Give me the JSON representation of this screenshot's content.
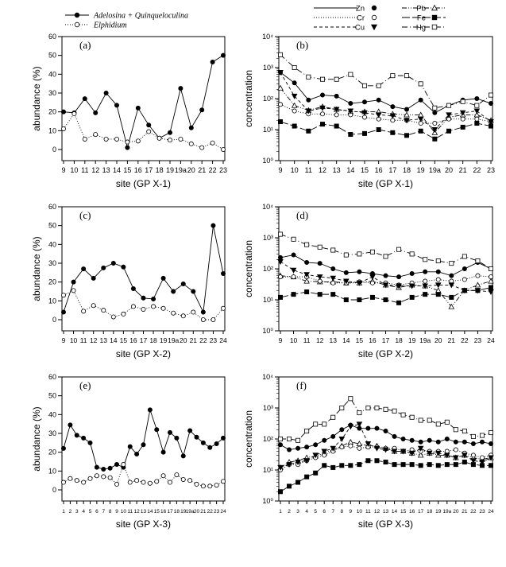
{
  "legend_left": [
    {
      "name": "Adelosina + Quinqueloculina",
      "marker": "filled-circle",
      "line": "solid"
    },
    {
      "name": "Elphidium",
      "marker": "open-circle",
      "line": "dotted"
    }
  ],
  "legend_right": [
    {
      "name": "Zn",
      "marker": "filled-circle",
      "line": "solid"
    },
    {
      "name": "Pb",
      "marker": "open-triangle",
      "line": "dash-dot-dot"
    },
    {
      "name": "Cr",
      "marker": "open-circle",
      "line": "dotted"
    },
    {
      "name": "Fe",
      "marker": "filled-square",
      "line": "long-dash"
    },
    {
      "name": "Cu",
      "marker": "filled-triangle-down",
      "line": "dashed"
    },
    {
      "name": "Hg",
      "marker": "open-square",
      "line": "dash-dot"
    }
  ],
  "chart_data": [
    {
      "panel": "(a)",
      "type": "line",
      "ylabel": "abundance (%)",
      "xlabel": "site (GP X-1)",
      "ylim": [
        0,
        60
      ],
      "yticks": [
        0,
        10,
        20,
        30,
        40,
        50,
        60
      ],
      "categories": [
        "9",
        "10",
        "11",
        "12",
        "13",
        "14",
        "15",
        "16",
        "17",
        "18",
        "19",
        "19a",
        "20",
        "21",
        "22",
        "23"
      ],
      "series": [
        {
          "name": "Adelosina + Quinqueloculina",
          "values": [
            20,
            19.5,
            27,
            19.5,
            30,
            23.5,
            1,
            22,
            13,
            6,
            9,
            32.5,
            11.5,
            21,
            46.5,
            50
          ]
        },
        {
          "name": "Elphidium",
          "values": [
            11,
            19,
            5.5,
            8,
            5.5,
            5.5,
            4,
            4.5,
            9.5,
            6,
            5,
            5.5,
            3,
            1,
            3.5,
            0
          ]
        }
      ]
    },
    {
      "panel": "(b)",
      "type": "line",
      "ylabel": "concentration",
      "xlabel": "site (GP X-1)",
      "yscale": "log",
      "ylim": [
        1,
        10000
      ],
      "yticks": [
        "10⁰",
        "10¹",
        "10²",
        "10³",
        "10⁴"
      ],
      "categories": [
        "9",
        "10",
        "11",
        "12",
        "13",
        "14",
        "15",
        "16",
        "17",
        "18",
        "19",
        "19a",
        "20",
        "21",
        "22",
        "23"
      ],
      "series": [
        {
          "name": "Zn",
          "values": [
            700,
            320,
            90,
            130,
            120,
            70,
            78,
            90,
            55,
            45,
            90,
            35,
            60,
            90,
            100,
            70
          ]
        },
        {
          "name": "Pb",
          "values": [
            220,
            60,
            42,
            55,
            45,
            38,
            38,
            38,
            32,
            30,
            30,
            8,
            25,
            30,
            30,
            20
          ]
        },
        {
          "name": "Cr",
          "values": [
            65,
            40,
            32,
            32,
            30,
            30,
            25,
            22,
            20,
            20,
            16,
            16,
            22,
            22,
            22,
            18
          ]
        },
        {
          "name": "Fe",
          "values": [
            18,
            13,
            9,
            15,
            13,
            7,
            7.5,
            10,
            8,
            6.5,
            9,
            5,
            9,
            12,
            16,
            13
          ]
        },
        {
          "name": "Cu",
          "values": [
            700,
            120,
            40,
            50,
            45,
            40,
            35,
            30,
            28,
            20,
            22,
            10,
            30,
            35,
            40,
            18
          ]
        },
        {
          "name": "Hg",
          "values": [
            2600,
            1000,
            500,
            420,
            420,
            600,
            260,
            260,
            550,
            550,
            300,
            50,
            60,
            80,
            60,
            130
          ]
        }
      ]
    },
    {
      "panel": "(c)",
      "type": "line",
      "ylabel": "abundance (%)",
      "xlabel": "site (GP X-2)",
      "ylim": [
        0,
        60
      ],
      "yticks": [
        0,
        10,
        20,
        30,
        40,
        50,
        60
      ],
      "categories": [
        "9",
        "10",
        "11",
        "12",
        "13",
        "14",
        "15",
        "16",
        "17",
        "18",
        "19",
        "19a",
        "20",
        "21",
        "22",
        "23",
        "24"
      ],
      "series": [
        {
          "name": "Adelosina + Quinqueloculina",
          "values": [
            4,
            20,
            27,
            22,
            27.5,
            30,
            28,
            16.5,
            11.5,
            11,
            22,
            15,
            19,
            15,
            4,
            50,
            24.5
          ]
        },
        {
          "name": "Elphidium",
          "values": [
            13,
            15.5,
            4.5,
            7.5,
            5,
            1.5,
            3,
            7,
            5.5,
            7,
            6,
            3.5,
            2,
            4,
            0,
            0,
            6
          ]
        }
      ]
    },
    {
      "panel": "(d)",
      "type": "line",
      "ylabel": "concentration",
      "xlabel": "site (GP X-2)",
      "yscale": "log",
      "ylim": [
        1,
        10000
      ],
      "yticks": [
        "10⁰",
        "10¹",
        "10²",
        "10³",
        "10⁴"
      ],
      "categories": [
        "9",
        "10",
        "11",
        "12",
        "13",
        "14",
        "15",
        "16",
        "17",
        "18",
        "19",
        "19a",
        "20",
        "21",
        "22",
        "23",
        "24"
      ],
      "series": [
        {
          "name": "Zn",
          "values": [
            230,
            280,
            160,
            150,
            100,
            75,
            80,
            70,
            60,
            55,
            70,
            80,
            80,
            60,
            100,
            160,
            100
          ]
        },
        {
          "name": "Pb",
          "values": [
            60,
            55,
            40,
            38,
            38,
            35,
            35,
            40,
            30,
            25,
            30,
            28,
            20,
            6,
            20,
            30,
            40
          ]
        },
        {
          "name": "Cr",
          "values": [
            55,
            55,
            55,
            40,
            35,
            35,
            38,
            35,
            35,
            30,
            35,
            40,
            45,
            40,
            45,
            60,
            55
          ]
        },
        {
          "name": "Fe",
          "values": [
            12,
            15,
            18,
            15,
            15,
            10,
            10,
            12,
            10,
            8,
            12,
            15,
            15,
            12,
            20,
            20,
            25
          ]
        },
        {
          "name": "Cu",
          "values": [
            170,
            90,
            65,
            55,
            50,
            40,
            35,
            55,
            30,
            28,
            28,
            28,
            30,
            30,
            20,
            20,
            18
          ]
        },
        {
          "name": "Hg",
          "values": [
            1300,
            900,
            600,
            500,
            400,
            280,
            300,
            350,
            250,
            420,
            300,
            200,
            180,
            150,
            250,
            180,
            100
          ]
        }
      ]
    },
    {
      "panel": "(e)",
      "type": "line",
      "ylabel": "abundance (%)",
      "xlabel": "site (GP X-3)",
      "ylim": [
        0,
        60
      ],
      "yticks": [
        0,
        10,
        20,
        30,
        40,
        50,
        60
      ],
      "categories": [
        "1",
        "2",
        "3",
        "4",
        "5",
        "6",
        "7",
        "8",
        "9",
        "10",
        "11",
        "12",
        "13",
        "14",
        "15",
        "16",
        "17",
        "18",
        "19",
        "19a",
        "20",
        "21",
        "22",
        "23",
        "24"
      ],
      "series": [
        {
          "name": "Adelosina + Quinqueloculina",
          "values": [
            22,
            34.5,
            29,
            27.5,
            25,
            12,
            11,
            11.5,
            13.5,
            12,
            23,
            19,
            24,
            42.5,
            32,
            20,
            30.5,
            27.5,
            18,
            31.5,
            28,
            25,
            22.5,
            24.5,
            27.5
          ]
        },
        {
          "name": "Elphidium",
          "values": [
            4,
            6,
            5,
            4,
            6,
            7.5,
            7,
            6.5,
            3,
            13.5,
            4,
            5,
            4,
            3.5,
            4.5,
            7.5,
            4,
            8,
            5.5,
            5,
            3,
            2,
            2,
            2.5,
            4.5
          ]
        }
      ]
    },
    {
      "panel": "(f)",
      "type": "line",
      "ylabel": "concentration",
      "xlabel": "site (GP X-3)",
      "yscale": "log",
      "ylim": [
        1,
        10000
      ],
      "yticks": [
        "10⁰",
        "10¹",
        "10²",
        "10³",
        "10⁴"
      ],
      "categories": [
        "1",
        "2",
        "3",
        "4",
        "5",
        "6",
        "7",
        "8",
        "9",
        "10",
        "11",
        "12",
        "13",
        "14",
        "15",
        "16",
        "17",
        "18",
        "19",
        "19a",
        "20",
        "21",
        "22",
        "23",
        "24"
      ],
      "series": [
        {
          "name": "Zn",
          "values": [
            65,
            45,
            50,
            55,
            65,
            90,
            120,
            200,
            280,
            220,
            220,
            220,
            180,
            120,
            100,
            90,
            80,
            90,
            80,
            100,
            80,
            80,
            70,
            80,
            70
          ]
        },
        {
          "name": "Pb",
          "values": [
            12,
            18,
            20,
            25,
            28,
            35,
            45,
            60,
            80,
            70,
            60,
            60,
            50,
            40,
            40,
            35,
            30,
            35,
            30,
            30,
            25,
            30,
            25,
            22,
            25
          ]
        },
        {
          "name": "Cr",
          "values": [
            10,
            15,
            15,
            20,
            25,
            30,
            40,
            55,
            60,
            50,
            55,
            55,
            50,
            50,
            40,
            45,
            40,
            40,
            40,
            40,
            45,
            35,
            30,
            25,
            30
          ]
        },
        {
          "name": "Fe",
          "values": [
            2,
            3,
            4,
            6,
            8,
            14,
            12,
            14,
            14,
            15,
            20,
            20,
            18,
            15,
            15,
            15,
            14,
            15,
            14,
            15,
            15,
            18,
            15,
            14,
            14
          ]
        },
        {
          "name": "Cu",
          "values": [
            12,
            15,
            18,
            20,
            30,
            40,
            50,
            100,
            250,
            300,
            70,
            50,
            45,
            40,
            40,
            35,
            50,
            35,
            35,
            30,
            25,
            30,
            20,
            18,
            25
          ]
        },
        {
          "name": "Hg",
          "values": [
            100,
            100,
            90,
            180,
            300,
            300,
            500,
            1000,
            2000,
            700,
            1000,
            1000,
            900,
            800,
            600,
            500,
            400,
            400,
            300,
            350,
            200,
            180,
            120,
            130,
            160
          ]
        }
      ]
    }
  ]
}
